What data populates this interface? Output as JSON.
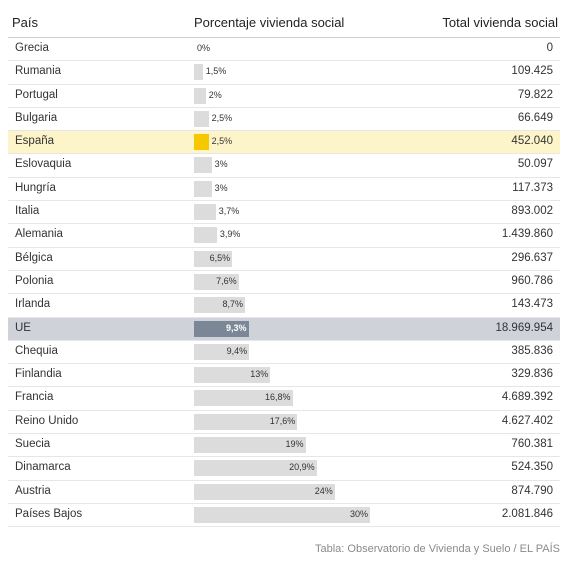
{
  "chart_data": {
    "type": "table",
    "columns": [
      "País",
      "Porcentaje vivienda social",
      "Total vivienda social"
    ],
    "rows": [
      {
        "country": "Grecia",
        "pct": 0,
        "pct_label": "0%",
        "total": "0"
      },
      {
        "country": "Rumania",
        "pct": 1.5,
        "pct_label": "1,5%",
        "total": "109.425"
      },
      {
        "country": "Portugal",
        "pct": 2,
        "pct_label": "2%",
        "total": "79.822"
      },
      {
        "country": "Bulgaria",
        "pct": 2.5,
        "pct_label": "2,5%",
        "total": "66.649"
      },
      {
        "country": "España",
        "pct": 2.5,
        "pct_label": "2,5%",
        "total": "452.040",
        "highlight": "es"
      },
      {
        "country": "Eslovaquia",
        "pct": 3,
        "pct_label": "3%",
        "total": "50.097"
      },
      {
        "country": "Hungría",
        "pct": 3,
        "pct_label": "3%",
        "total": "117.373"
      },
      {
        "country": "Italia",
        "pct": 3.7,
        "pct_label": "3,7%",
        "total": "893.002"
      },
      {
        "country": "Alemania",
        "pct": 3.9,
        "pct_label": "3,9%",
        "total": "1.439.860"
      },
      {
        "country": "Bélgica",
        "pct": 6.5,
        "pct_label": "6,5%",
        "total": "296.637"
      },
      {
        "country": "Polonia",
        "pct": 7.6,
        "pct_label": "7,6%",
        "total": "960.786"
      },
      {
        "country": "Irlanda",
        "pct": 8.7,
        "pct_label": "8,7%",
        "total": "143.473"
      },
      {
        "country": "UE",
        "pct": 9.3,
        "pct_label": "9,3%",
        "total": "18.969.954",
        "highlight": "ue"
      },
      {
        "country": "Chequia",
        "pct": 9.4,
        "pct_label": "9,4%",
        "total": "385.836"
      },
      {
        "country": "Finlandia",
        "pct": 13,
        "pct_label": "13%",
        "total": "329.836"
      },
      {
        "country": "Francia",
        "pct": 16.8,
        "pct_label": "16,8%",
        "total": "4.689.392"
      },
      {
        "country": "Reino Unido",
        "pct": 17.6,
        "pct_label": "17,6%",
        "total": "4.627.402"
      },
      {
        "country": "Suecia",
        "pct": 19,
        "pct_label": "19%",
        "total": "760.381"
      },
      {
        "country": "Dinamarca",
        "pct": 20.9,
        "pct_label": "20,9%",
        "total": "524.350"
      },
      {
        "country": "Austria",
        "pct": 24,
        "pct_label": "24%",
        "total": "874.790"
      },
      {
        "country": "Países Bajos",
        "pct": 30,
        "pct_label": "30%",
        "total": "2.081.846"
      }
    ],
    "pct_max": 30,
    "colors": {
      "bar": "#dcdcdc",
      "spain": "#f5c800",
      "eu": "#7b8796",
      "spain_row": "#fdf4c9",
      "eu_row": "#cfd3d9"
    }
  },
  "source": "Tabla: Observatorio de Vivienda y Suelo / EL PAÍS"
}
